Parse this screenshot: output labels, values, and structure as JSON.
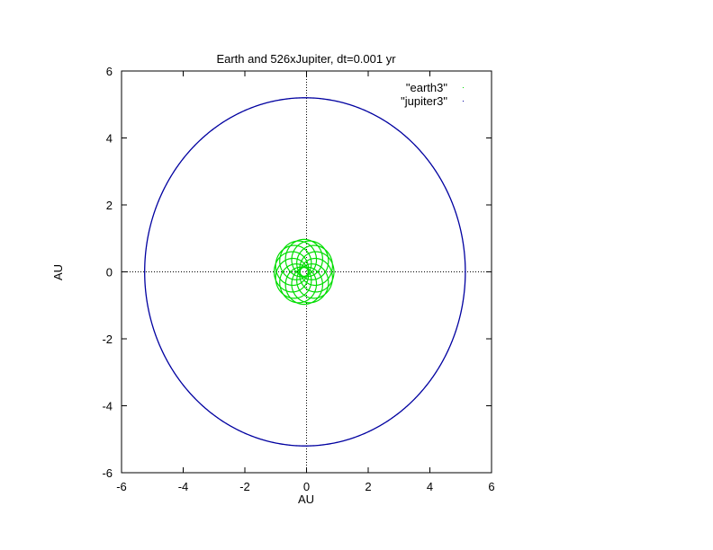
{
  "chart_data": {
    "type": "scatter",
    "title": "Earth and 526xJupiter, dt=0.001 yr",
    "xlabel": "AU",
    "ylabel": "AU",
    "xlim": [
      -6,
      6
    ],
    "ylim": [
      -6,
      6
    ],
    "xticks": [
      "-6",
      "-4",
      "-2",
      "0",
      "2",
      "4",
      "6"
    ],
    "yticks": [
      "-6",
      "-4",
      "-2",
      "0",
      "2",
      "4",
      "6"
    ],
    "zero_axes": true,
    "grid": false,
    "legend_position": "top-right",
    "series": [
      {
        "name": "\"earth3\"",
        "color": "#00dd00",
        "marker": "dot",
        "shape": "rosette of precessing loops",
        "loop_radius": 0.55,
        "center_orbit_radius": 0.42,
        "center_offset_x": -0.08,
        "loops": 13
      },
      {
        "name": "\"jupiter3\"",
        "color": "#0000a0",
        "marker": "dot",
        "shape": "circular orbit",
        "orbit_center": [
          -0.05,
          0
        ],
        "orbit_radius": 5.2
      }
    ]
  }
}
